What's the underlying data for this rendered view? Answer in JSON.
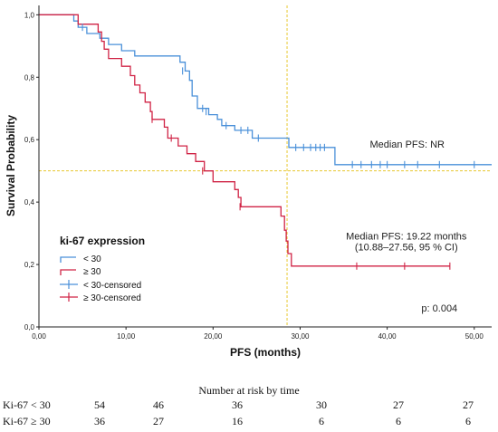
{
  "chart_data": {
    "type": "line",
    "subtype": "kaplan-meier",
    "xlabel": "PFS (months)",
    "ylabel": "Survival Probability",
    "xlim": [
      0,
      52
    ],
    "ylim": [
      0,
      1.03
    ],
    "x_ticks": [
      "0,00",
      "10,00",
      "20,00",
      "30,00",
      "40,00",
      "50,00"
    ],
    "x_tick_values": [
      0,
      10,
      20,
      30,
      40,
      50
    ],
    "y_ticks": [
      "0,0",
      "0,2",
      "0,4",
      "0,6",
      "0,8",
      "1,0"
    ],
    "y_tick_values": [
      0,
      0.2,
      0.4,
      0.6,
      0.8,
      1.0
    ],
    "grid": false,
    "legend": {
      "title": "ki-67 expression",
      "placement": "left",
      "entries": [
        "< 30",
        "≥ 30",
        "< 30-censored",
        "≥ 30-censored"
      ]
    },
    "reference_lines": {
      "x": 28.5,
      "y": 0.5,
      "color": "#e8c830"
    },
    "series": [
      {
        "name": "< 30",
        "color": "#4a90d9",
        "steps": [
          [
            0,
            1.0
          ],
          [
            4.0,
            0.98
          ],
          [
            4.5,
            0.96
          ],
          [
            5.5,
            0.94
          ],
          [
            7.0,
            0.925
          ],
          [
            8.0,
            0.905
          ],
          [
            9.5,
            0.885
          ],
          [
            11.0,
            0.868
          ],
          [
            16.2,
            0.848
          ],
          [
            16.8,
            0.82
          ],
          [
            17.3,
            0.79
          ],
          [
            17.6,
            0.74
          ],
          [
            18.2,
            0.7
          ],
          [
            19.5,
            0.68
          ],
          [
            20.5,
            0.665
          ],
          [
            21.0,
            0.645
          ],
          [
            22.5,
            0.63
          ],
          [
            24.5,
            0.605
          ],
          [
            28.7,
            0.575
          ],
          [
            34.0,
            0.52
          ],
          [
            52.0,
            0.52
          ]
        ],
        "censored": [
          [
            5.0,
            0.96
          ],
          [
            16.5,
            0.82
          ],
          [
            18.8,
            0.7
          ],
          [
            19.2,
            0.69
          ],
          [
            21.5,
            0.645
          ],
          [
            23.2,
            0.63
          ],
          [
            24.0,
            0.63
          ],
          [
            25.2,
            0.605
          ],
          [
            29.5,
            0.575
          ],
          [
            30.4,
            0.575
          ],
          [
            31.2,
            0.575
          ],
          [
            31.8,
            0.575
          ],
          [
            32.3,
            0.575
          ],
          [
            32.8,
            0.575
          ],
          [
            36.0,
            0.52
          ],
          [
            37.0,
            0.52
          ],
          [
            38.2,
            0.52
          ],
          [
            39.2,
            0.52
          ],
          [
            40.0,
            0.52
          ],
          [
            42.0,
            0.52
          ],
          [
            43.5,
            0.52
          ],
          [
            46.0,
            0.52
          ],
          [
            50.0,
            0.52
          ]
        ]
      },
      {
        "name": "≥ 30",
        "color": "#d02345",
        "steps": [
          [
            0,
            1.0
          ],
          [
            4.5,
            0.97
          ],
          [
            6.8,
            0.945
          ],
          [
            7.2,
            0.915
          ],
          [
            7.5,
            0.89
          ],
          [
            8.0,
            0.86
          ],
          [
            9.5,
            0.835
          ],
          [
            10.5,
            0.805
          ],
          [
            11.0,
            0.775
          ],
          [
            11.6,
            0.75
          ],
          [
            12.2,
            0.72
          ],
          [
            12.8,
            0.69
          ],
          [
            13.0,
            0.665
          ],
          [
            14.4,
            0.64
          ],
          [
            14.8,
            0.605
          ],
          [
            16.0,
            0.58
          ],
          [
            17.0,
            0.555
          ],
          [
            18.0,
            0.53
          ],
          [
            19.0,
            0.5
          ],
          [
            20.0,
            0.465
          ],
          [
            22.5,
            0.44
          ],
          [
            22.9,
            0.415
          ],
          [
            23.2,
            0.385
          ],
          [
            27.8,
            0.355
          ],
          [
            28.2,
            0.31
          ],
          [
            28.4,
            0.275
          ],
          [
            28.6,
            0.235
          ],
          [
            29.0,
            0.195
          ],
          [
            47.2,
            0.195
          ]
        ],
        "censored": [
          [
            13.0,
            0.665
          ],
          [
            15.2,
            0.605
          ],
          [
            18.8,
            0.5
          ],
          [
            23.1,
            0.385
          ],
          [
            36.5,
            0.195
          ],
          [
            42.0,
            0.195
          ],
          [
            47.2,
            0.195
          ]
        ]
      }
    ],
    "annotations": [
      {
        "id": "nr",
        "text": "Median PFS: NR",
        "x": 42.3,
        "y": 0.575
      },
      {
        "id": "median-line1",
        "text": "Median PFS: 19.22 months",
        "x": 42.2,
        "y": 0.28
      },
      {
        "id": "median-line2",
        "text": "(10.88–27.56, 95 % CI)",
        "x": 42.2,
        "y": 0.245
      },
      {
        "id": "pvalue",
        "text": "p: 0.004",
        "x": 46.0,
        "y": 0.05
      }
    ]
  },
  "risk_table": {
    "title": "Number at risk by time",
    "times": [
      0,
      10,
      20,
      30,
      40,
      50
    ],
    "rows": [
      {
        "label": "Ki-67 < 30",
        "counts": [
          "54",
          "46",
          "36",
          "30",
          "27",
          "27"
        ]
      },
      {
        "label": "Ki-67 ≥ 30",
        "counts": [
          "36",
          "27",
          "16",
          "6",
          "6",
          "6"
        ]
      }
    ]
  }
}
